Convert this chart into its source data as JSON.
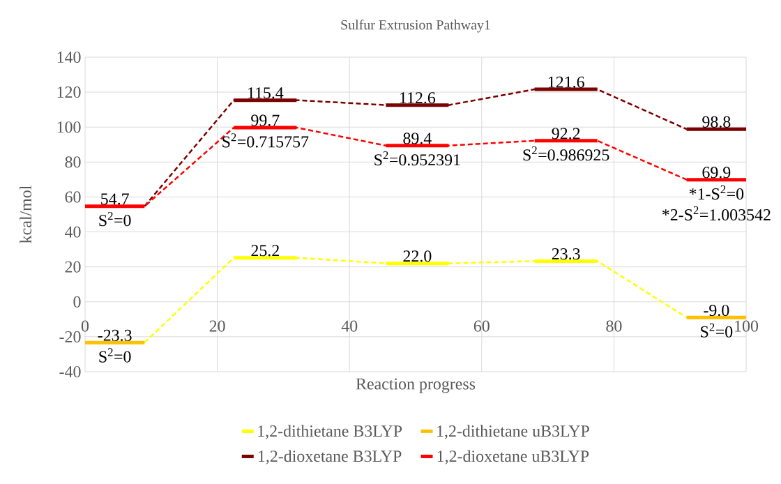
{
  "chart_data": {
    "type": "line",
    "title": "Sulfur Extrusion Pathway1",
    "xlabel": "Reaction progress",
    "ylabel": "kcal/mol",
    "x": [
      0,
      9,
      22.5,
      32,
      45.5,
      55,
      68,
      77.5,
      91,
      100
    ],
    "series": [
      {
        "name": "1,2-dithietane B3LYP",
        "color": "#ffff00",
        "values": [
          null,
          -23.3,
          25.2,
          25.2,
          22.0,
          22.0,
          23.3,
          23.3,
          -9.0,
          null
        ],
        "value_labels": [
          null,
          null,
          "25.2",
          null,
          "22.0",
          null,
          "23.3",
          null,
          null,
          null
        ]
      },
      {
        "name": "1,2-dithietane uB3LYP",
        "color": "#ffc000",
        "values": [
          -23.3,
          -23.3,
          null,
          null,
          null,
          null,
          null,
          null,
          -9.0,
          -9.0
        ],
        "value_labels": [
          "-23.3",
          null,
          null,
          null,
          null,
          null,
          null,
          null,
          "-9.0",
          null
        ]
      },
      {
        "name": "1,2-dioxetane B3LYP",
        "color": "#7b0000",
        "values": [
          null,
          54.7,
          115.4,
          115.4,
          112.6,
          112.6,
          121.6,
          121.6,
          98.8,
          98.8
        ],
        "value_labels": [
          null,
          null,
          "115.4",
          null,
          "112.6",
          null,
          "121.6",
          null,
          "98.8",
          null
        ]
      },
      {
        "name": "1,2-dioxetane uB3LYP",
        "color": "#ff0000",
        "values": [
          54.7,
          54.7,
          99.7,
          99.7,
          89.4,
          89.4,
          92.2,
          92.2,
          69.9,
          69.9
        ],
        "value_labels": [
          "54.7",
          null,
          "99.7",
          null,
          "89.4",
          null,
          "92.2",
          null,
          "69.9",
          null
        ]
      }
    ],
    "annotations": [
      {
        "text": "S$^{2}$=0",
        "x": 4.5,
        "y": 54.7
      },
      {
        "text": "S$^{2}$=0",
        "x": 4.5,
        "y": -23.3
      },
      {
        "text": "S$^{2}$=0.715757",
        "x": 27.25,
        "y": 99.7
      },
      {
        "text": "S$^{2}$=0.952391",
        "x": 50.25,
        "y": 89.4
      },
      {
        "text": "S$^{2}$=0.986925",
        "x": 72.75,
        "y": 92.2
      },
      {
        "text": "*1-S$^{2}$=0",
        "x": 95.5,
        "y": 69.9
      },
      {
        "text": "*2-S$^{2}$=1.003542",
        "x": 95.5,
        "y": 69.9
      },
      {
        "text": "S$^{2}$=0",
        "x": 95.5,
        "y": -9.0
      }
    ],
    "xlim": [
      0,
      100
    ],
    "xticks": [
      0,
      20,
      40,
      60,
      80,
      100
    ],
    "ylim": [
      -40,
      140
    ],
    "yticks": [
      -40,
      -20,
      0,
      20,
      40,
      60,
      80,
      100,
      120,
      140
    ],
    "grid": true,
    "legend": "bottom",
    "line_style": "dashed"
  }
}
